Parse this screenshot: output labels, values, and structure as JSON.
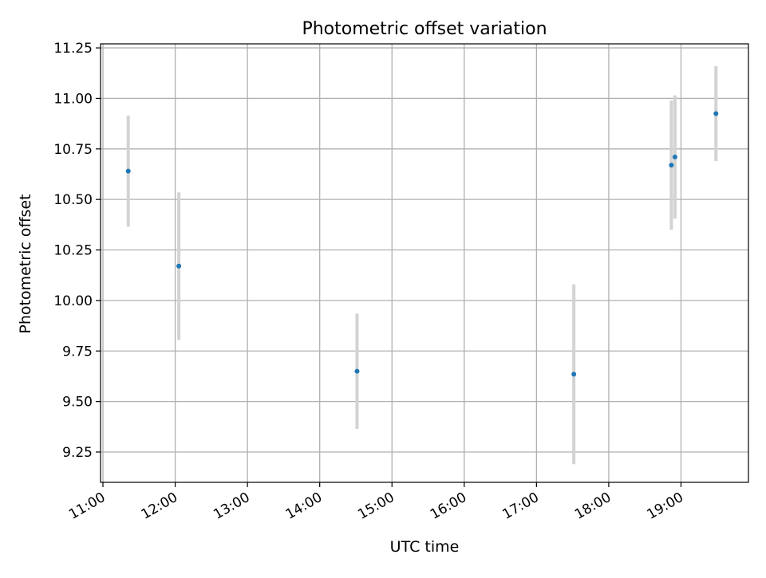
{
  "chart_data": {
    "type": "scatter",
    "title": "Photometric offset variation",
    "xlabel": "UTC time",
    "ylabel": "Photometric offset",
    "xlim": [
      "10:58",
      "19:56"
    ],
    "ylim": [
      9.1,
      11.27
    ],
    "x_ticks": [
      "11:00",
      "12:00",
      "13:00",
      "14:00",
      "15:00",
      "16:00",
      "17:00",
      "18:00",
      "19:00"
    ],
    "y_ticks": [
      "9.25",
      "9.50",
      "9.75",
      "10.00",
      "10.25",
      "10.50",
      "10.75",
      "11.00",
      "11.25"
    ],
    "grid": true,
    "colors": {
      "point": "#1f77b4",
      "errorbar": "#d3d3d3",
      "grid": "#b0b0b0"
    },
    "points": [
      {
        "x": "11:21",
        "y": 10.64,
        "err": 0.275
      },
      {
        "x": "12:03",
        "y": 10.17,
        "err": 0.365
      },
      {
        "x": "14:31",
        "y": 9.65,
        "err": 0.285
      },
      {
        "x": "17:31",
        "y": 9.635,
        "err": 0.445
      },
      {
        "x": "18:52",
        "y": 10.67,
        "err": 0.32
      },
      {
        "x": "18:55",
        "y": 10.71,
        "err": 0.305
      },
      {
        "x": "19:29",
        "y": 10.925,
        "err": 0.235
      }
    ]
  }
}
